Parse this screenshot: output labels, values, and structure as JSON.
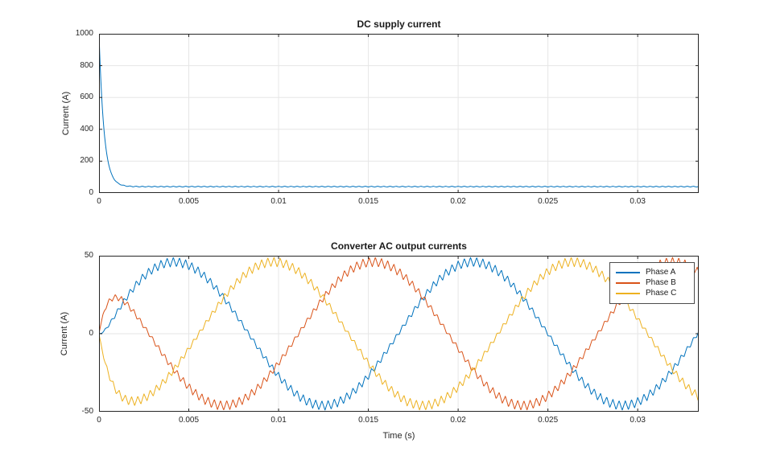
{
  "figure": {
    "background": "#ffffff",
    "axis_color": "#262626",
    "grid_color": "#e6e6e6",
    "tick_label_color": "#262626"
  },
  "chart_data": [
    {
      "type": "line",
      "title": "DC supply current",
      "xlabel": "",
      "ylabel": "Current (A)",
      "xlim": [
        0,
        0.0334
      ],
      "ylim": [
        0,
        1000
      ],
      "xticks": [
        0,
        0.005,
        0.01,
        0.015,
        0.02,
        0.025,
        0.03
      ],
      "xtick_labels": [
        "0",
        "0.005",
        "0.01",
        "0.015",
        "0.02",
        "0.025",
        "0.03"
      ],
      "yticks": [
        0,
        200,
        400,
        600,
        800,
        1000
      ],
      "ytick_labels": [
        "0",
        "200",
        "400",
        "600",
        "800",
        "1000"
      ],
      "grid": true,
      "legend": null,
      "series": [
        {
          "name": "DC supply current",
          "color": "#0072BD",
          "model": "exp_decay",
          "initial_A": 1000,
          "steady_state_A": 40,
          "time_constant_s": 0.00028,
          "ripple_amplitude_A": 2.5,
          "ripple_freq_hz": 2900
        }
      ]
    },
    {
      "type": "line",
      "title": "Converter AC output currents",
      "xlabel": "Time (s)",
      "ylabel": "Current (A)",
      "xlim": [
        0,
        0.0334
      ],
      "ylim": [
        -50,
        50
      ],
      "xticks": [
        0,
        0.005,
        0.01,
        0.015,
        0.02,
        0.025,
        0.03
      ],
      "xtick_labels": [
        "0",
        "0.005",
        "0.01",
        "0.015",
        "0.02",
        "0.025",
        "0.03"
      ],
      "yticks": [
        -50,
        0,
        50
      ],
      "ytick_labels": [
        "-50",
        "0",
        "50"
      ],
      "grid": true,
      "legend": {
        "position": "northeast",
        "entries": [
          "Phase A",
          "Phase B",
          "Phase C"
        ]
      },
      "series": [
        {
          "name": "Phase A",
          "color": "#0072BD",
          "model": "sine",
          "amplitude_A": 46,
          "freq_hz": 60,
          "phase_deg": 0,
          "startup_tau_s": 0.0006,
          "ripple_amplitude_A": 3,
          "ripple_freq_hz": 2900
        },
        {
          "name": "Phase B",
          "color": "#D95319",
          "model": "sine",
          "amplitude_A": 46,
          "freq_hz": 60,
          "phase_deg": 120,
          "startup_tau_s": 0.0006,
          "ripple_amplitude_A": 3,
          "ripple_freq_hz": 2900
        },
        {
          "name": "Phase C",
          "color": "#EDB120",
          "model": "sine",
          "amplitude_A": 46,
          "freq_hz": 60,
          "phase_deg": -120,
          "startup_tau_s": 0.0006,
          "ripple_amplitude_A": 3,
          "ripple_freq_hz": 2900
        }
      ]
    }
  ]
}
